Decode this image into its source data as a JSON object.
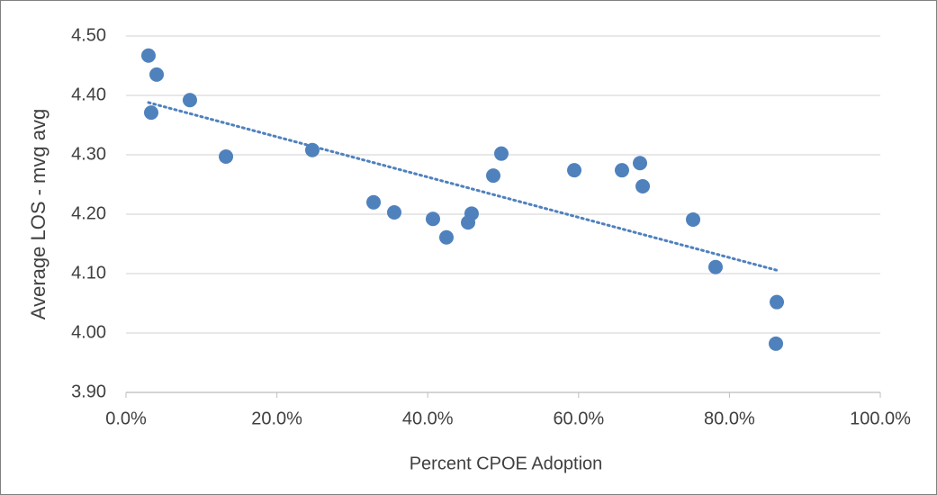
{
  "chart_data": {
    "type": "scatter",
    "xlabel": "Percent CPOE Adoption",
    "ylabel": "Average LOS - mvg avg",
    "color": "#4f81bd",
    "trendline": true,
    "trendline_color": "#4f81bd",
    "grid": true,
    "x": [
      2.98,
      4.06,
      3.34,
      8.47,
      13.25,
      24.7,
      32.82,
      35.56,
      40.69,
      42.48,
      45.35,
      45.82,
      48.69,
      49.76,
      59.43,
      65.75,
      68.14,
      68.5,
      75.18,
      78.16,
      86.28,
      86.16
    ],
    "y": [
      4.467,
      4.435,
      4.371,
      4.392,
      4.297,
      4.308,
      4.22,
      4.203,
      4.192,
      4.161,
      4.186,
      4.201,
      4.265,
      4.302,
      4.274,
      4.274,
      4.286,
      4.247,
      4.191,
      4.111,
      4.052,
      3.982
    ],
    "xlim": [
      0,
      100
    ],
    "xticks": [
      {
        "value": 0,
        "label": "0.0%"
      },
      {
        "value": 20,
        "label": "20.0%"
      },
      {
        "value": 40,
        "label": "40.0%"
      },
      {
        "value": 60,
        "label": "60.0%"
      },
      {
        "value": 80,
        "label": "80.0%"
      },
      {
        "value": 100,
        "label": "100.0%"
      }
    ],
    "ylim": [
      3.9,
      4.5
    ],
    "yticks": [
      {
        "value": 3.9,
        "label": "3.90"
      },
      {
        "value": 4.0,
        "label": "4.00"
      },
      {
        "value": 4.1,
        "label": "4.10"
      },
      {
        "value": 4.2,
        "label": "4.20"
      },
      {
        "value": 4.3,
        "label": "4.30"
      },
      {
        "value": 4.4,
        "label": "4.40"
      },
      {
        "value": 4.5,
        "label": "4.50"
      }
    ]
  }
}
